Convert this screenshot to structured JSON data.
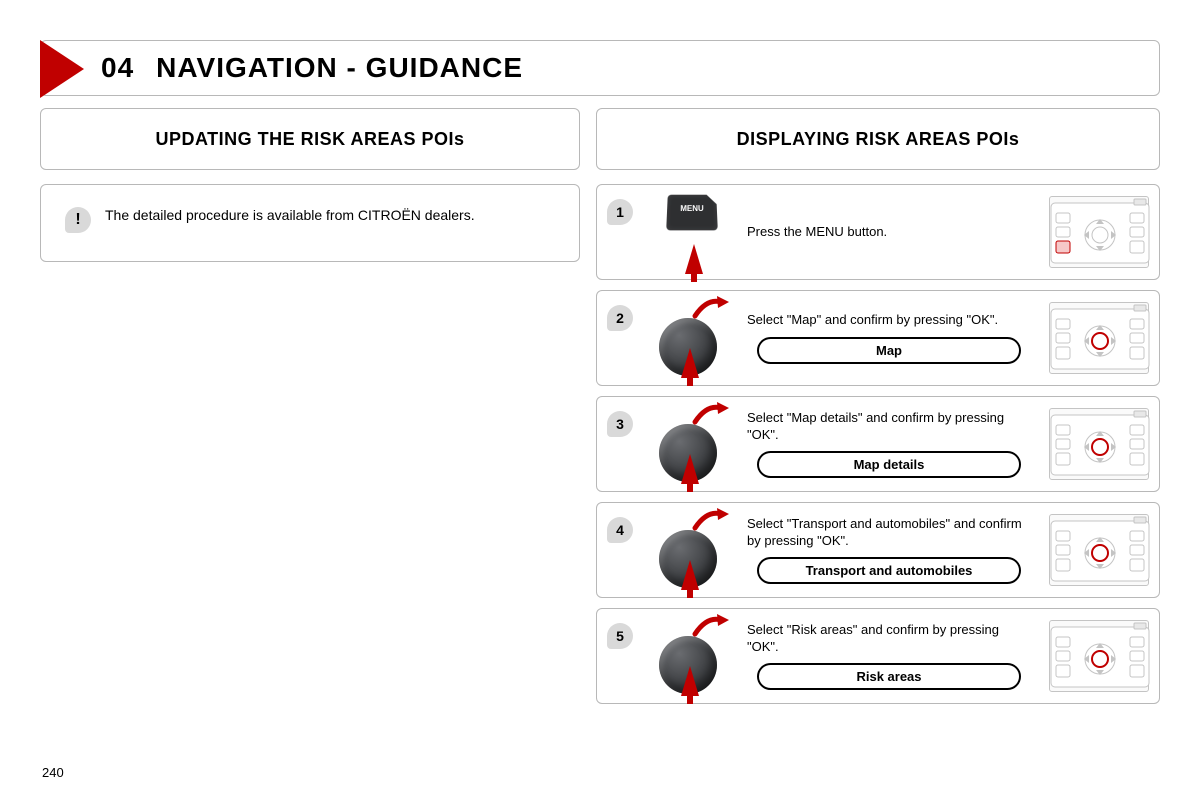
{
  "page_number": "240",
  "title": {
    "number": "04",
    "text": "NAVIGATION - GUIDANCE"
  },
  "left": {
    "heading": "UPDATING THE RISK AREAS POIs",
    "note_icon": "!",
    "note_text": "The detailed procedure is available from CITROËN dealers."
  },
  "right": {
    "heading": "DISPLAYING RISK AREAS POIs",
    "steps": [
      {
        "n": "1",
        "text": "Press the MENU button.",
        "option": null,
        "graphic": "menu",
        "thumb_hilite": "menu"
      },
      {
        "n": "2",
        "text": "Select \"Map\" and confirm by pressing \"OK\".",
        "option": "Map",
        "graphic": "dial",
        "thumb_hilite": "center"
      },
      {
        "n": "3",
        "text": "Select \"Map details\" and confirm by pressing \"OK\".",
        "option": "Map details",
        "graphic": "dial",
        "thumb_hilite": "center"
      },
      {
        "n": "4",
        "text": "Select \"Transport and automobiles\" and confirm by pressing \"OK\".",
        "option": "Transport and automobiles",
        "graphic": "dial",
        "thumb_hilite": "center"
      },
      {
        "n": "5",
        "text": "Select \"Risk areas\" and confirm by pressing \"OK\".",
        "option": "Risk areas",
        "graphic": "dial",
        "thumb_hilite": "center"
      }
    ]
  },
  "colors": {
    "accent": "#c00000",
    "border": "#b8b8b8",
    "badge_bg": "#d9d9d9",
    "dial_dark": "#2a2b2d"
  }
}
